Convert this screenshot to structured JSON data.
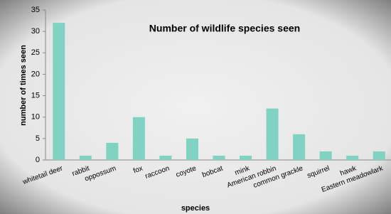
{
  "chart_data": {
    "type": "bar",
    "title": "Number of wildlife species seen",
    "x_label": "species",
    "y_label": "number of times seen",
    "categories": [
      "whitetail deer",
      "rabbit",
      "oppossum",
      "fox",
      "raccoon",
      "coyote",
      "bobcat",
      "mink",
      "American robbin",
      "common grackle",
      "squirrel",
      "hawk",
      "Eastern meadowlark"
    ],
    "values": [
      32,
      1,
      4,
      10,
      1,
      5,
      1,
      1,
      12,
      6,
      2,
      1,
      2
    ],
    "color": "#80d3c3",
    "ylim": [
      0,
      35
    ],
    "yticks": [
      0,
      5,
      10,
      15,
      20,
      25,
      30,
      35
    ],
    "grid": false
  }
}
